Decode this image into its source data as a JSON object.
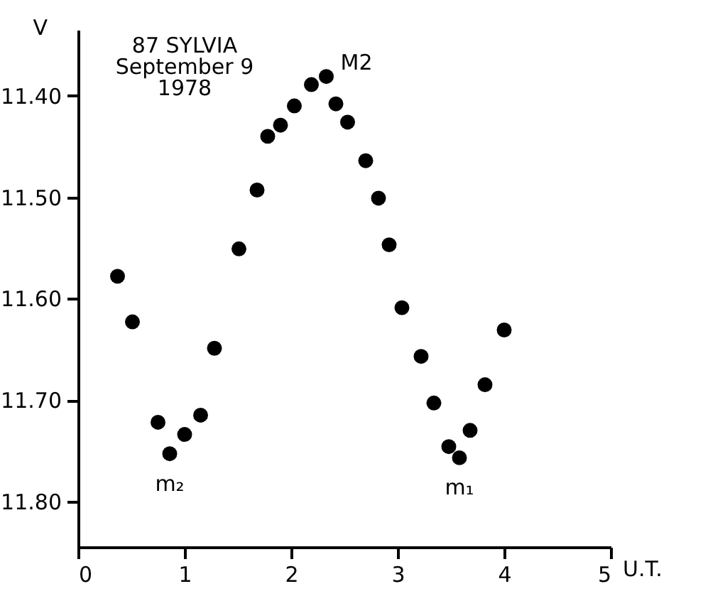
{
  "chart_data": {
    "type": "scatter",
    "title": "87 SYLVIA\nSeptember 9\n1978",
    "xlabel": "U.T.",
    "ylabel": "V",
    "x": [
      0.37,
      0.51,
      0.75,
      0.86,
      1.0,
      1.15,
      1.28,
      1.51,
      1.68,
      1.78,
      1.9,
      2.03,
      2.19,
      2.33,
      2.42,
      2.53,
      2.7,
      2.82,
      2.92,
      3.04,
      3.22,
      3.34,
      3.48,
      3.58,
      3.68,
      3.82,
      4.0
    ],
    "series": [
      {
        "color": "#000000",
        "values": [
          11.578,
          11.623,
          11.722,
          11.753,
          11.734,
          11.715,
          11.649,
          11.551,
          11.493,
          11.44,
          11.429,
          11.41,
          11.389,
          11.381,
          11.408,
          11.426,
          11.464,
          11.501,
          11.547,
          11.609,
          11.657,
          11.703,
          11.746,
          11.757,
          11.73,
          11.685,
          11.631
        ]
      }
    ],
    "annotations": [
      {
        "text": "M2",
        "x": 2.33,
        "y": 11.381
      },
      {
        "text": "m₂",
        "x": 0.86,
        "y": 11.753
      },
      {
        "text": "m₁",
        "x": 3.58,
        "y": 11.757
      }
    ],
    "xlim": [
      0,
      5
    ],
    "xticks": [
      0,
      1,
      2,
      3,
      4,
      5
    ],
    "ylim": [
      11.845,
      11.335
    ],
    "yticks": [
      {
        "value": 11.4,
        "label": "11.40"
      },
      {
        "value": 11.5,
        "label": "11.50"
      },
      {
        "value": 11.6,
        "label": "11.60"
      },
      {
        "value": 11.7,
        "label": "11.70"
      },
      {
        "value": 11.8,
        "label": "11.80"
      }
    ],
    "marker": "circle",
    "grid": false
  }
}
